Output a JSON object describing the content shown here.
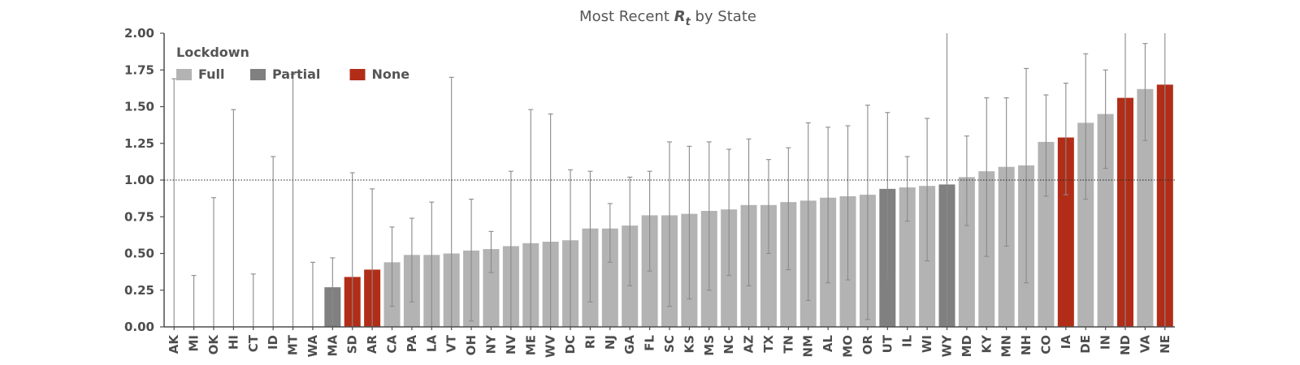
{
  "chart_data": {
    "type": "bar",
    "title_prefix": "Most Recent ",
    "title_symbol": "R",
    "title_subscript": "t",
    "title_suffix": " by State",
    "xlabel": "",
    "ylabel": "",
    "ylim": [
      0,
      2.0
    ],
    "yticks": [
      "0.00",
      "0.25",
      "0.50",
      "0.75",
      "1.00",
      "1.25",
      "1.50",
      "1.75",
      "2.00"
    ],
    "reference_line": 1.0,
    "grid": false,
    "legend": {
      "title": "Lockdown",
      "placement": "top-left",
      "entries": [
        {
          "key": "Full",
          "label": "Full",
          "color": "#b3b3b3"
        },
        {
          "key": "Partial",
          "label": "Partial",
          "color": "#808080"
        },
        {
          "key": "None",
          "label": "None",
          "color": "#b22d17"
        }
      ]
    },
    "categories": [
      "AK",
      "MI",
      "OK",
      "HI",
      "CT",
      "ID",
      "MT",
      "WA",
      "MA",
      "SD",
      "AR",
      "CA",
      "PA",
      "LA",
      "VT",
      "OH",
      "NY",
      "NV",
      "ME",
      "WV",
      "DC",
      "RI",
      "NJ",
      "GA",
      "FL",
      "SC",
      "KS",
      "MS",
      "NC",
      "AZ",
      "TX",
      "TN",
      "NM",
      "AL",
      "MO",
      "OR",
      "UT",
      "IL",
      "WI",
      "WY",
      "MD",
      "KY",
      "MN",
      "NH",
      "CO",
      "IA",
      "DE",
      "IN",
      "ND",
      "VA",
      "NE"
    ],
    "values": [
      0.0,
      0.0,
      0.0,
      0.0,
      0.0,
      0.0,
      0.0,
      0.0,
      0.27,
      0.34,
      0.39,
      0.44,
      0.49,
      0.49,
      0.5,
      0.52,
      0.53,
      0.55,
      0.57,
      0.58,
      0.59,
      0.67,
      0.67,
      0.69,
      0.76,
      0.76,
      0.77,
      0.79,
      0.8,
      0.83,
      0.83,
      0.85,
      0.86,
      0.88,
      0.89,
      0.9,
      0.94,
      0.95,
      0.96,
      0.97,
      1.02,
      1.06,
      1.09,
      1.1,
      1.26,
      1.29,
      1.39,
      1.45,
      1.56,
      1.62,
      1.65
    ],
    "lower": [
      0.0,
      0.0,
      0.0,
      0.0,
      0.0,
      0.0,
      0.0,
      0.0,
      0.02,
      0.0,
      0.0,
      0.14,
      0.17,
      0.0,
      0.0,
      0.04,
      0.37,
      0.0,
      0.0,
      0.0,
      0.0,
      0.17,
      0.44,
      0.28,
      0.38,
      0.14,
      0.19,
      0.25,
      0.35,
      0.28,
      0.5,
      0.39,
      0.18,
      0.3,
      0.32,
      0.05,
      0.32,
      0.72,
      0.45,
      0.0,
      0.69,
      0.48,
      0.55,
      0.3,
      0.89,
      0.9,
      0.87,
      1.08,
      0.0,
      1.27,
      0.0
    ],
    "upper": [
      1.69,
      0.35,
      0.88,
      1.48,
      0.36,
      1.16,
      1.72,
      0.44,
      0.47,
      1.05,
      0.94,
      0.68,
      0.74,
      0.85,
      1.7,
      0.87,
      0.65,
      1.06,
      1.48,
      1.45,
      1.07,
      1.06,
      0.84,
      1.02,
      1.06,
      1.26,
      1.23,
      1.26,
      1.21,
      1.28,
      1.14,
      1.22,
      1.39,
      1.36,
      1.37,
      1.51,
      1.46,
      1.16,
      1.42,
      2.0,
      1.3,
      1.56,
      1.56,
      1.76,
      1.58,
      1.66,
      1.86,
      1.75,
      2.0,
      1.93,
      2.0
    ],
    "lockdown": [
      "Full",
      "Full",
      "Full",
      "Full",
      "Full",
      "Full",
      "Full",
      "Full",
      "Partial",
      "None",
      "None",
      "Full",
      "Full",
      "Full",
      "Full",
      "Full",
      "Full",
      "Full",
      "Full",
      "Full",
      "Full",
      "Full",
      "Full",
      "Full",
      "Full",
      "Full",
      "Full",
      "Full",
      "Full",
      "Full",
      "Full",
      "Full",
      "Full",
      "Full",
      "Full",
      "Full",
      "Partial",
      "Full",
      "Full",
      "Partial",
      "Full",
      "Full",
      "Full",
      "Full",
      "Full",
      "None",
      "Full",
      "Full",
      "None",
      "Full",
      "None"
    ]
  }
}
